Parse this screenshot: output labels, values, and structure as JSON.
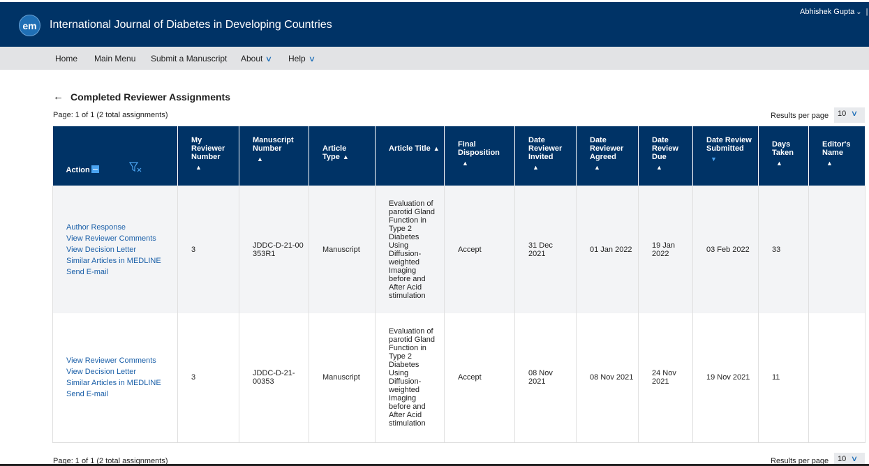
{
  "header": {
    "logo_text": "em",
    "journal_title": "International Journal of Diabetes in Developing Countries",
    "user_name": "Abhishek Gupta",
    "user_separator": "|"
  },
  "nav": {
    "items": [
      {
        "label": "Home"
      },
      {
        "label": "Main Menu"
      },
      {
        "label": "Submit a Manuscript"
      },
      {
        "label": "About"
      },
      {
        "label": "Help"
      }
    ]
  },
  "page": {
    "title": "Completed Reviewer Assignments",
    "page_info_top": "Page: 1 of 1 (2 total assignments)",
    "page_info_bottom": "Page: 1 of 1 (2 total assignments)",
    "results_per_page_label": "Results per page",
    "results_per_page_value": "10"
  },
  "table": {
    "headers": {
      "action": "Action",
      "reviewer_number": "My Reviewer Number",
      "manuscript_number": "Manuscript Number",
      "article_type": "Article Type",
      "article_title": "Article Title",
      "final_disposition": "Final Disposition",
      "date_invited": "Date Reviewer Invited",
      "date_agreed": "Date Reviewer Agreed",
      "date_due": "Date Review Due",
      "date_submitted": "Date Review Submitted",
      "days_taken": "Days Taken",
      "editor_name": "Editor's Name"
    },
    "rows": [
      {
        "actions": [
          "Author Response",
          "View Reviewer Comments",
          "View Decision Letter",
          "Similar Articles in MEDLINE",
          "Send E-mail"
        ],
        "reviewer_number": "3",
        "manuscript_number": "JDDC-D-21-00353R1",
        "article_type": "Manuscript",
        "article_title": "Evaluation of parotid Gland Function in Type 2 Diabetes Using Diffusion-weighted Imaging before and After Acid stimulation",
        "final_disposition": "Accept",
        "date_invited": "31 Dec 2021",
        "date_agreed": "01 Jan 2022",
        "date_due": "19 Jan 2022",
        "date_submitted": "03 Feb 2022",
        "days_taken": "33",
        "editor_name": ""
      },
      {
        "actions": [
          "View Reviewer Comments",
          "View Decision Letter",
          "Similar Articles in MEDLINE",
          "Send E-mail"
        ],
        "reviewer_number": "3",
        "manuscript_number": "JDDC-D-21-00353",
        "article_type": "Manuscript",
        "article_title": "Evaluation of parotid Gland Function in Type 2 Diabetes Using Diffusion-weighted Imaging before and After Acid stimulation",
        "final_disposition": "Accept",
        "date_invited": "08 Nov 2021",
        "date_agreed": "08 Nov 2021",
        "date_due": "24 Nov 2021",
        "date_submitted": "19 Nov 2021",
        "days_taken": "11",
        "editor_name": ""
      }
    ]
  }
}
